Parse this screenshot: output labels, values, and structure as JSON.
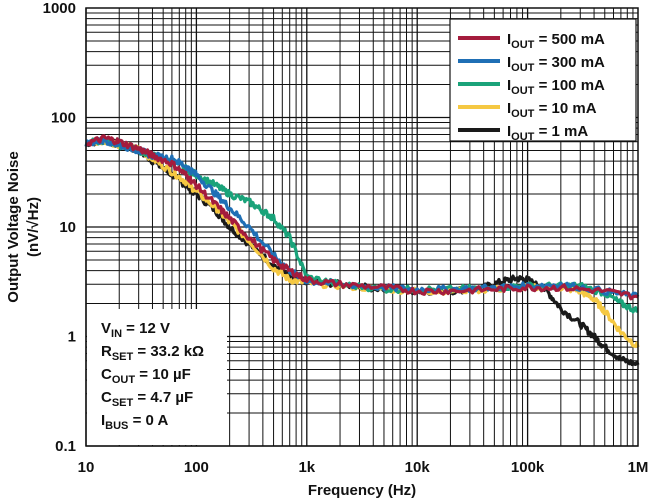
{
  "chart_data": {
    "type": "line",
    "xscale": "log",
    "yscale": "log",
    "xlim": [
      10,
      1000000
    ],
    "ylim": [
      0.1,
      1000
    ],
    "xlabel": "Frequency (Hz)",
    "ylabel_line1": "Output Voltage Noise",
    "ylabel_line2": "(nV/√Hz)",
    "x_ticks": [
      {
        "value": 10,
        "label": "10"
      },
      {
        "value": 100,
        "label": "100"
      },
      {
        "value": 1000,
        "label": "1k"
      },
      {
        "value": 10000,
        "label": "10k"
      },
      {
        "value": 100000,
        "label": "100k"
      },
      {
        "value": 1000000,
        "label": "1M"
      }
    ],
    "y_ticks": [
      {
        "value": 0.1,
        "label": "0.1"
      },
      {
        "value": 1,
        "label": "1"
      },
      {
        "value": 10,
        "label": "10"
      },
      {
        "value": 100,
        "label": "100"
      },
      {
        "value": 1000,
        "label": "1000"
      }
    ],
    "grid": true,
    "legend_position": "top-right",
    "series": [
      {
        "legend_main": "I",
        "legend_sub": "OUT",
        "legend_value": " = 1 mA",
        "color": "#1a1a1a",
        "points": [
          [
            10,
            58
          ],
          [
            15,
            62
          ],
          [
            20,
            56
          ],
          [
            30,
            50
          ],
          [
            40,
            40
          ],
          [
            60,
            30
          ],
          [
            80,
            24
          ],
          [
            100,
            20
          ],
          [
            150,
            14
          ],
          [
            200,
            10
          ],
          [
            300,
            7
          ],
          [
            500,
            4.5
          ],
          [
            700,
            3.5
          ],
          [
            1000,
            3.2
          ],
          [
            2000,
            3.0
          ],
          [
            5000,
            2.7
          ],
          [
            10000,
            2.6
          ],
          [
            20000,
            2.6
          ],
          [
            40000,
            2.8
          ],
          [
            60000,
            3.2
          ],
          [
            80000,
            3.4
          ],
          [
            100000,
            3.3
          ],
          [
            150000,
            2.6
          ],
          [
            200000,
            1.8
          ],
          [
            300000,
            1.3
          ],
          [
            400000,
            1.0
          ],
          [
            500000,
            0.8
          ],
          [
            700000,
            0.62
          ],
          [
            1000000,
            0.55
          ]
        ]
      },
      {
        "legend_main": "I",
        "legend_sub": "OUT",
        "legend_value": " = 10 mA",
        "color": "#f5c842",
        "points": [
          [
            10,
            58
          ],
          [
            15,
            62
          ],
          [
            20,
            56
          ],
          [
            30,
            52
          ],
          [
            40,
            42
          ],
          [
            60,
            32
          ],
          [
            80,
            26
          ],
          [
            100,
            21
          ],
          [
            150,
            15
          ],
          [
            200,
            11
          ],
          [
            300,
            7.5
          ],
          [
            500,
            4.2
          ],
          [
            700,
            3.3
          ],
          [
            1000,
            3.1
          ],
          [
            2000,
            2.9
          ],
          [
            5000,
            2.7
          ],
          [
            10000,
            2.6
          ],
          [
            20000,
            2.6
          ],
          [
            50000,
            2.7
          ],
          [
            100000,
            2.8
          ],
          [
            200000,
            2.8
          ],
          [
            300000,
            2.6
          ],
          [
            400000,
            2.2
          ],
          [
            500000,
            1.7
          ],
          [
            700000,
            1.1
          ],
          [
            1000000,
            0.8
          ]
        ]
      },
      {
        "legend_main": "I",
        "legend_sub": "OUT",
        "legend_value": " = 100 mA",
        "color": "#1aa37a",
        "points": [
          [
            10,
            58
          ],
          [
            15,
            62
          ],
          [
            20,
            56
          ],
          [
            30,
            50
          ],
          [
            40,
            45
          ],
          [
            60,
            40
          ],
          [
            80,
            34
          ],
          [
            100,
            30
          ],
          [
            150,
            24
          ],
          [
            200,
            20
          ],
          [
            300,
            17
          ],
          [
            400,
            14
          ],
          [
            500,
            12
          ],
          [
            700,
            8
          ],
          [
            1000,
            3.5
          ],
          [
            2000,
            3.0
          ],
          [
            5000,
            2.7
          ],
          [
            10000,
            2.7
          ],
          [
            20000,
            2.7
          ],
          [
            50000,
            2.8
          ],
          [
            100000,
            2.9
          ],
          [
            200000,
            2.9
          ],
          [
            300000,
            2.9
          ],
          [
            500000,
            2.5
          ],
          [
            700000,
            2.0
          ],
          [
            1000000,
            1.7
          ]
        ]
      },
      {
        "legend_main": "I",
        "legend_sub": "OUT",
        "legend_value": " = 300 mA",
        "color": "#1f6fb5",
        "points": [
          [
            10,
            58
          ],
          [
            15,
            62
          ],
          [
            20,
            56
          ],
          [
            30,
            50
          ],
          [
            40,
            45
          ],
          [
            60,
            42
          ],
          [
            80,
            36
          ],
          [
            100,
            30
          ],
          [
            150,
            20
          ],
          [
            200,
            15
          ],
          [
            300,
            10
          ],
          [
            500,
            5.5
          ],
          [
            700,
            4.0
          ],
          [
            1000,
            3.2
          ],
          [
            2000,
            3.0
          ],
          [
            5000,
            2.8
          ],
          [
            10000,
            2.7
          ],
          [
            20000,
            2.7
          ],
          [
            50000,
            2.8
          ],
          [
            100000,
            2.9
          ],
          [
            200000,
            3.0
          ],
          [
            500000,
            2.6
          ],
          [
            1000000,
            2.3
          ]
        ]
      },
      {
        "legend_main": "I",
        "legend_sub": "OUT",
        "legend_value": " = 500 mA",
        "color": "#a41c3d",
        "points": [
          [
            10,
            58
          ],
          [
            15,
            65
          ],
          [
            20,
            60
          ],
          [
            30,
            52
          ],
          [
            40,
            45
          ],
          [
            60,
            38
          ],
          [
            80,
            30
          ],
          [
            100,
            24
          ],
          [
            150,
            16
          ],
          [
            200,
            12
          ],
          [
            300,
            8
          ],
          [
            500,
            5
          ],
          [
            700,
            4
          ],
          [
            1000,
            3.3
          ],
          [
            2000,
            3.0
          ],
          [
            5000,
            2.8
          ],
          [
            10000,
            2.6
          ],
          [
            20000,
            2.6
          ],
          [
            50000,
            2.7
          ],
          [
            100000,
            2.8
          ],
          [
            200000,
            2.8
          ],
          [
            500000,
            2.6
          ],
          [
            1000000,
            2.3
          ]
        ]
      }
    ],
    "legend_order": [
      4,
      3,
      2,
      1,
      0
    ],
    "conditions": [
      {
        "main": "V",
        "sub": "IN",
        "value": " = 12 V"
      },
      {
        "main": "R",
        "sub": "SET",
        "value": " = 33.2 kΩ"
      },
      {
        "main": "C",
        "sub": "OUT",
        "value": " = 10 µF"
      },
      {
        "main": "C",
        "sub": "SET",
        "value": " = 4.7 µF"
      },
      {
        "main": "I",
        "sub": "BUS",
        "value": " = 0 A"
      }
    ]
  }
}
